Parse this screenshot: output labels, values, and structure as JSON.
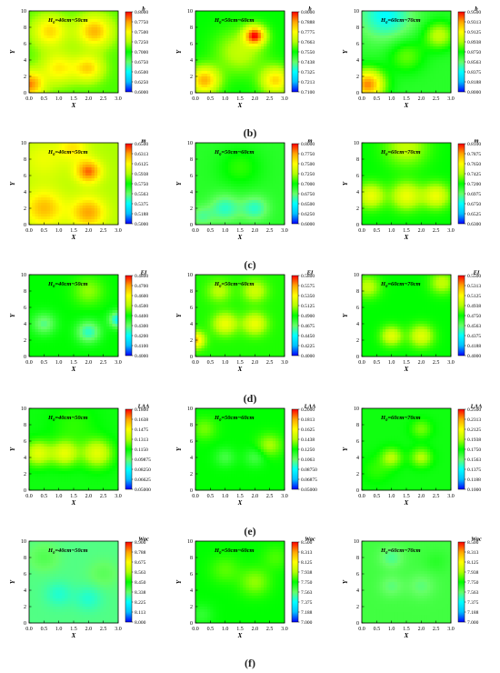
{
  "rows": [
    {
      "label": "",
      "panels": [
        {
          "zone": "H0=40cm~50cm",
          "var": "b",
          "ticks": [
            "0.8000",
            "0.7750",
            "0.7500",
            "0.7250",
            "0.7000",
            "0.6750",
            "0.6500",
            "0.6250",
            "0.6000"
          ],
          "base": 0.55,
          "blobs": [
            [
              0.7,
              7.5,
              0.6,
              0.25
            ],
            [
              2.2,
              7.5,
              0.6,
              0.3
            ],
            [
              1.0,
              3.0,
              0.6,
              0.22
            ],
            [
              2.0,
              3.0,
              0.5,
              0.25
            ],
            [
              0.0,
              1.0,
              0.5,
              0.35
            ]
          ]
        },
        {
          "zone": "H0=50cm~60cm",
          "var": "b",
          "ticks": [
            "0.8000",
            "0.7888",
            "0.7775",
            "0.7663",
            "0.7550",
            "0.7438",
            "0.7325",
            "0.7213",
            "0.7100"
          ],
          "base": 0.5,
          "blobs": [
            [
              2.0,
              7.0,
              0.35,
              0.45
            ],
            [
              0.3,
              1.5,
              0.5,
              0.35
            ],
            [
              2.7,
              1.5,
              0.5,
              0.3
            ],
            [
              1.5,
              5.0,
              0.8,
              0.15
            ]
          ]
        },
        {
          "zone": "H0=60cm~70cm",
          "var": "b",
          "ticks": [
            "0.9500",
            "0.9313",
            "0.9125",
            "0.8938",
            "0.8750",
            "0.8563",
            "0.8375",
            "0.8188",
            "0.8000"
          ],
          "base": 0.45,
          "blobs": [
            [
              0.8,
              9.5,
              0.9,
              -0.2
            ],
            [
              0.2,
              1.0,
              0.55,
              0.45
            ],
            [
              2.6,
              7.0,
              0.5,
              0.2
            ],
            [
              1.5,
              4.5,
              0.6,
              0.12
            ]
          ]
        }
      ]
    },
    {
      "label": "(b)",
      "panels": [
        {
          "zone": "H0=40cm~50cm",
          "var": "m",
          "ticks": [
            "0.6500",
            "0.6313",
            "0.6125",
            "0.5938",
            "0.5750",
            "0.5563",
            "0.5375",
            "0.5188",
            "0.5000"
          ],
          "base": 0.62,
          "blobs": [
            [
              2.0,
              6.5,
              0.45,
              0.3
            ],
            [
              0.5,
              2.0,
              0.7,
              0.22
            ],
            [
              2.0,
              1.5,
              0.6,
              0.25
            ],
            [
              0.5,
              8.0,
              0.8,
              0.1
            ],
            [
              1.5,
              9.5,
              0.5,
              0.15
            ]
          ]
        },
        {
          "zone": "H0=50cm~60cm",
          "var": "m",
          "ticks": [
            "0.8000",
            "0.7750",
            "0.7500",
            "0.7250",
            "0.7000",
            "0.6750",
            "0.6500",
            "0.6250",
            "0.6000"
          ],
          "base": 0.45,
          "blobs": [
            [
              1.0,
              2.0,
              0.5,
              -0.15
            ],
            [
              2.0,
              2.0,
              0.45,
              -0.15
            ],
            [
              0.2,
              1.0,
              0.4,
              -0.1
            ],
            [
              1.5,
              7.0,
              0.7,
              0.08
            ]
          ]
        },
        {
          "zone": "H0=60cm~70cm",
          "var": "m",
          "ticks": [
            "0.8100",
            "0.7875",
            "0.7650",
            "0.7425",
            "0.7200",
            "0.6975",
            "0.6750",
            "0.6525",
            "0.6300"
          ],
          "base": 0.5,
          "blobs": [
            [
              0.3,
              3.5,
              0.45,
              0.22
            ],
            [
              1.5,
              3.5,
              0.5,
              0.22
            ],
            [
              2.5,
              3.5,
              0.45,
              0.22
            ],
            [
              1.5,
              9.5,
              0.7,
              0.15
            ]
          ]
        }
      ]
    },
    {
      "label": "(c)",
      "panels": [
        {
          "zone": "H0=40cm~50cm",
          "var": "EI",
          "ticks": [
            "0.4800",
            "0.4700",
            "0.4600",
            "0.4500",
            "0.4400",
            "0.4300",
            "0.4200",
            "0.4100",
            "0.4000"
          ],
          "base": 0.5,
          "blobs": [
            [
              2.0,
              3.0,
              0.4,
              -0.2
            ],
            [
              0.5,
              4.0,
              0.4,
              -0.15
            ],
            [
              3.0,
              4.5,
              0.3,
              -0.25
            ],
            [
              2.0,
              8.0,
              0.5,
              0.1
            ]
          ]
        },
        {
          "zone": "H0=50cm~60cm",
          "var": "EI",
          "ticks": [
            "0.5800",
            "0.5575",
            "0.5350",
            "0.5125",
            "0.4900",
            "0.4675",
            "0.4450",
            "0.4225",
            "0.4000"
          ],
          "base": 0.52,
          "blobs": [
            [
              1.0,
              4.0,
              0.4,
              0.2
            ],
            [
              2.0,
              4.0,
              0.4,
              0.2
            ],
            [
              0.0,
              2.0,
              0.3,
              0.3
            ],
            [
              2.0,
              8.0,
              0.4,
              0.15
            ],
            [
              0.8,
              8.0,
              0.4,
              0.12
            ]
          ]
        },
        {
          "zone": "H0=60cm~70cm",
          "var": "EI",
          "ticks": [
            "0.5500",
            "0.5313",
            "0.5125",
            "0.4938",
            "0.4750",
            "0.4563",
            "0.4375",
            "0.4188",
            "0.4000"
          ],
          "base": 0.5,
          "blobs": [
            [
              1.0,
              2.5,
              0.35,
              0.2
            ],
            [
              2.0,
              2.5,
              0.4,
              0.2
            ],
            [
              0.2,
              8.5,
              0.4,
              0.15
            ],
            [
              2.7,
              9.0,
              0.4,
              0.15
            ]
          ]
        }
      ]
    },
    {
      "label": "(d)",
      "panels": [
        {
          "zone": "H0=40cm~50cm",
          "var": "LAA",
          "ticks": [
            "0.1800",
            "0.1638",
            "0.1475",
            "0.1313",
            "0.1150",
            "0.09875",
            "0.08250",
            "0.06625",
            "0.05000"
          ],
          "base": 0.48,
          "blobs": [
            [
              0.3,
              4.5,
              0.45,
              0.22
            ],
            [
              1.2,
              4.5,
              0.45,
              0.22
            ],
            [
              2.3,
              4.5,
              0.5,
              0.22
            ],
            [
              1.5,
              8.0,
              0.8,
              0.05
            ]
          ]
        },
        {
          "zone": "H0=50cm~60cm",
          "var": "LAA",
          "ticks": [
            "0.2000",
            "0.1813",
            "0.1625",
            "0.1438",
            "0.1250",
            "0.1063",
            "0.08750",
            "0.06875",
            "0.05000"
          ],
          "base": 0.5,
          "blobs": [
            [
              1.0,
              4.0,
              0.35,
              -0.08
            ],
            [
              2.0,
              4.0,
              0.35,
              -0.08
            ],
            [
              0.3,
              7.5,
              0.4,
              0.08
            ],
            [
              2.5,
              5.5,
              0.4,
              0.12
            ]
          ]
        },
        {
          "zone": "H0=60cm~70cm",
          "var": "LAA",
          "ticks": [
            "0.2500",
            "0.2313",
            "0.2125",
            "0.1938",
            "0.1750",
            "0.1563",
            "0.1375",
            "0.1188",
            "0.1000"
          ],
          "base": 0.48,
          "blobs": [
            [
              1.0,
              4.0,
              0.35,
              0.15
            ],
            [
              2.0,
              4.0,
              0.35,
              0.15
            ],
            [
              2.0,
              7.5,
              0.35,
              0.1
            ],
            [
              0.5,
              2.5,
              0.5,
              0.05
            ]
          ]
        }
      ]
    },
    {
      "label": "(e)",
      "panels": [
        {
          "zone": "H0=40cm~50cm",
          "var": "Wac",
          "ticks": [
            "8.900",
            "8.788",
            "8.675",
            "8.563",
            "8.450",
            "8.338",
            "8.225",
            "8.113",
            "8.000"
          ],
          "base": 0.35,
          "blobs": [
            [
              1.0,
              3.5,
              0.45,
              -0.06
            ],
            [
              2.0,
              3.0,
              0.45,
              -0.06
            ],
            [
              0.5,
              8.0,
              0.5,
              0.05
            ],
            [
              2.5,
              6.0,
              0.5,
              0.04
            ]
          ]
        },
        {
          "zone": "H0=50cm~60cm",
          "var": "Wac",
          "ticks": [
            "8.500",
            "8.313",
            "8.125",
            "7.938",
            "7.750",
            "7.563",
            "7.375",
            "7.188",
            "7.000"
          ],
          "base": 0.5,
          "blobs": [
            [
              2.0,
              5.0,
              0.5,
              0.1
            ],
            [
              1.0,
              6.5,
              0.5,
              0.06
            ],
            [
              0.2,
              1.0,
              0.4,
              -0.06
            ],
            [
              2.7,
              8.0,
              0.45,
              0.05
            ]
          ]
        },
        {
          "zone": "H0=60cm~70cm",
          "var": "Wac",
          "ticks": [
            "8.500",
            "8.313",
            "8.125",
            "7.938",
            "7.750",
            "7.563",
            "7.375",
            "7.188",
            "7.000"
          ],
          "base": 0.42,
          "blobs": [
            [
              1.0,
              8.0,
              0.4,
              -0.08
            ],
            [
              1.0,
              4.5,
              0.4,
              -0.06
            ],
            [
              2.0,
              4.5,
              0.45,
              -0.06
            ],
            [
              2.5,
              7.5,
              0.4,
              0.03
            ]
          ]
        }
      ]
    }
  ],
  "final_label": "(f)",
  "axes": {
    "xlabel": "X",
    "ylabel": "Y",
    "xticks": [
      "0.0",
      "0.5",
      "1.0",
      "1.5",
      "2.0",
      "2.5",
      "3.0"
    ],
    "yticks": [
      "0",
      "2",
      "4",
      "6",
      "8",
      "10"
    ],
    "xlim": [
      0,
      3
    ],
    "ylim": [
      0,
      10
    ]
  },
  "colorscale": [
    "#0000ff",
    "#00bfff",
    "#00ffff",
    "#66ff66",
    "#00ff00",
    "#b3ff00",
    "#ffff00",
    "#ffa500",
    "#ff0000"
  ],
  "chart_data": {
    "type": "heatmap",
    "grid": "5 rows x 3 columns of contour maps",
    "x_range": [
      0,
      3
    ],
    "y_range": [
      0,
      10
    ],
    "panels": [
      {
        "variable": "b",
        "zones": [
          "H0=40cm~50cm",
          "H0=50cm~60cm",
          "H0=60cm~70cm"
        ],
        "color_ranges": [
          [
            0.6,
            0.8
          ],
          [
            0.71,
            0.8
          ],
          [
            0.8,
            0.95
          ]
        ]
      },
      {
        "variable": "m",
        "zones": [
          "H0=40cm~50cm",
          "H0=50cm~60cm",
          "H0=60cm~70cm"
        ],
        "color_ranges": [
          [
            0.5,
            0.65
          ],
          [
            0.6,
            0.8
          ],
          [
            0.63,
            0.81
          ]
        ]
      },
      {
        "variable": "EI",
        "zones": [
          "H0=40cm~50cm",
          "H0=50cm~60cm",
          "H0=60cm~70cm"
        ],
        "color_ranges": [
          [
            0.4,
            0.48
          ],
          [
            0.4,
            0.58
          ],
          [
            0.4,
            0.55
          ]
        ]
      },
      {
        "variable": "LAA",
        "zones": [
          "H0=40cm~50cm",
          "H0=50cm~60cm",
          "H0=60cm~70cm"
        ],
        "color_ranges": [
          [
            0.05,
            0.18
          ],
          [
            0.05,
            0.2
          ],
          [
            0.1,
            0.25
          ]
        ]
      },
      {
        "variable": "Wac",
        "zones": [
          "H0=40cm~50cm",
          "H0=50cm~60cm",
          "H0=60cm~70cm"
        ],
        "color_ranges": [
          [
            8.0,
            8.9
          ],
          [
            7.0,
            8.5
          ],
          [
            7.0,
            8.5
          ]
        ]
      }
    ],
    "xlabel": "X",
    "ylabel": "Y"
  }
}
